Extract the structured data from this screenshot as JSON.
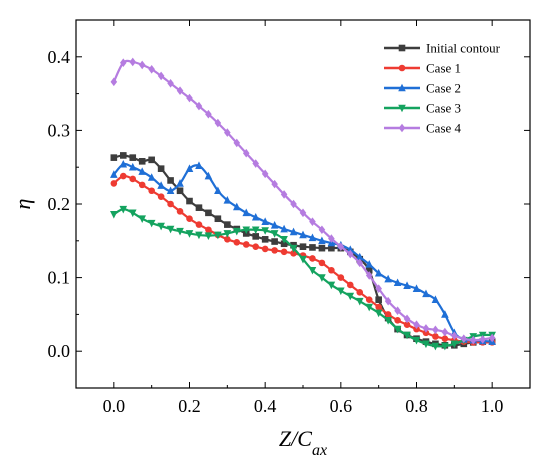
{
  "chart_data": {
    "type": "line",
    "xlabel": "Z/C",
    "xlabel_sub": "ax",
    "ylabel": "η",
    "xlim": [
      -0.1,
      1.1
    ],
    "ylim": [
      -0.05,
      0.45
    ],
    "xticks": [
      0.0,
      0.2,
      0.4,
      0.6,
      0.8,
      1.0
    ],
    "xtick_labels": [
      "0.0",
      "0.2",
      "0.4",
      "0.6",
      "0.8",
      "1.0"
    ],
    "yticks": [
      0.0,
      0.1,
      0.2,
      0.3,
      0.4
    ],
    "ytick_labels": [
      "0.0",
      "0.1",
      "0.2",
      "0.3",
      "0.4"
    ],
    "grid": false,
    "legend_position": "top-right",
    "series": [
      {
        "name": "Initial contour",
        "color": "#3d3d3d",
        "marker": "square",
        "x": [
          0.0,
          0.025,
          0.05,
          0.075,
          0.1,
          0.125,
          0.15,
          0.175,
          0.2,
          0.225,
          0.25,
          0.275,
          0.3,
          0.325,
          0.35,
          0.375,
          0.4,
          0.425,
          0.45,
          0.475,
          0.5,
          0.525,
          0.55,
          0.575,
          0.6,
          0.625,
          0.65,
          0.675,
          0.7,
          0.725,
          0.75,
          0.775,
          0.8,
          0.825,
          0.85,
          0.875,
          0.9,
          0.925,
          0.95,
          0.975,
          1.0
        ],
        "y": [
          0.263,
          0.266,
          0.263,
          0.258,
          0.26,
          0.248,
          0.232,
          0.218,
          0.204,
          0.195,
          0.188,
          0.18,
          0.172,
          0.166,
          0.16,
          0.156,
          0.152,
          0.149,
          0.146,
          0.144,
          0.142,
          0.141,
          0.14,
          0.14,
          0.14,
          0.135,
          0.125,
          0.11,
          0.07,
          0.045,
          0.03,
          0.022,
          0.017,
          0.013,
          0.01,
          0.008,
          0.008,
          0.01,
          0.012,
          0.013,
          0.013
        ]
      },
      {
        "name": "Case 1",
        "color": "#ee3b32",
        "marker": "circle",
        "x": [
          0.0,
          0.025,
          0.05,
          0.075,
          0.1,
          0.125,
          0.15,
          0.175,
          0.2,
          0.225,
          0.25,
          0.275,
          0.3,
          0.325,
          0.35,
          0.375,
          0.4,
          0.425,
          0.45,
          0.475,
          0.5,
          0.525,
          0.55,
          0.575,
          0.6,
          0.625,
          0.65,
          0.675,
          0.7,
          0.725,
          0.75,
          0.775,
          0.8,
          0.825,
          0.85,
          0.875,
          0.9,
          0.925,
          0.95,
          0.975,
          1.0
        ],
        "y": [
          0.228,
          0.238,
          0.234,
          0.226,
          0.218,
          0.21,
          0.2,
          0.19,
          0.18,
          0.172,
          0.165,
          0.158,
          0.152,
          0.148,
          0.145,
          0.142,
          0.139,
          0.137,
          0.135,
          0.133,
          0.13,
          0.126,
          0.12,
          0.11,
          0.1,
          0.09,
          0.08,
          0.07,
          0.06,
          0.05,
          0.042,
          0.036,
          0.03,
          0.025,
          0.02,
          0.017,
          0.015,
          0.013,
          0.012,
          0.012,
          0.012
        ]
      },
      {
        "name": "Case 2",
        "color": "#1f6fd6",
        "marker": "triangle-up",
        "x": [
          0.0,
          0.025,
          0.05,
          0.075,
          0.1,
          0.125,
          0.15,
          0.175,
          0.2,
          0.225,
          0.25,
          0.275,
          0.3,
          0.325,
          0.35,
          0.375,
          0.4,
          0.425,
          0.45,
          0.475,
          0.5,
          0.525,
          0.55,
          0.575,
          0.6,
          0.625,
          0.65,
          0.675,
          0.7,
          0.725,
          0.75,
          0.775,
          0.8,
          0.825,
          0.85,
          0.875,
          0.9,
          0.925,
          0.95,
          0.975,
          1.0
        ],
        "y": [
          0.24,
          0.254,
          0.25,
          0.244,
          0.236,
          0.225,
          0.218,
          0.228,
          0.248,
          0.252,
          0.238,
          0.218,
          0.205,
          0.196,
          0.188,
          0.182,
          0.176,
          0.171,
          0.166,
          0.162,
          0.158,
          0.154,
          0.15,
          0.147,
          0.144,
          0.138,
          0.128,
          0.118,
          0.106,
          0.098,
          0.093,
          0.089,
          0.085,
          0.078,
          0.07,
          0.05,
          0.025,
          0.016,
          0.015,
          0.014,
          0.013
        ]
      },
      {
        "name": "Case 3",
        "color": "#14a35f",
        "marker": "triangle-down",
        "x": [
          0.0,
          0.025,
          0.05,
          0.075,
          0.1,
          0.125,
          0.15,
          0.175,
          0.2,
          0.225,
          0.25,
          0.275,
          0.3,
          0.325,
          0.35,
          0.375,
          0.4,
          0.425,
          0.45,
          0.475,
          0.5,
          0.525,
          0.55,
          0.575,
          0.6,
          0.625,
          0.65,
          0.675,
          0.7,
          0.725,
          0.75,
          0.775,
          0.8,
          0.825,
          0.85,
          0.875,
          0.9,
          0.925,
          0.95,
          0.975,
          1.0
        ],
        "y": [
          0.186,
          0.193,
          0.188,
          0.18,
          0.174,
          0.17,
          0.166,
          0.163,
          0.16,
          0.158,
          0.157,
          0.158,
          0.16,
          0.163,
          0.165,
          0.165,
          0.164,
          0.16,
          0.152,
          0.14,
          0.125,
          0.11,
          0.1,
          0.09,
          0.082,
          0.075,
          0.068,
          0.06,
          0.052,
          0.042,
          0.03,
          0.022,
          0.015,
          0.01,
          0.007,
          0.007,
          0.01,
          0.015,
          0.02,
          0.022,
          0.022
        ]
      },
      {
        "name": "Case 4",
        "color": "#b57ce0",
        "marker": "diamond",
        "x": [
          0.0,
          0.025,
          0.05,
          0.075,
          0.1,
          0.125,
          0.15,
          0.175,
          0.2,
          0.225,
          0.25,
          0.275,
          0.3,
          0.325,
          0.35,
          0.375,
          0.4,
          0.425,
          0.45,
          0.475,
          0.5,
          0.525,
          0.55,
          0.575,
          0.6,
          0.625,
          0.65,
          0.675,
          0.7,
          0.725,
          0.75,
          0.775,
          0.8,
          0.825,
          0.85,
          0.875,
          0.9,
          0.925,
          0.95,
          0.975,
          1.0
        ],
        "y": [
          0.366,
          0.392,
          0.393,
          0.389,
          0.383,
          0.374,
          0.364,
          0.354,
          0.344,
          0.333,
          0.322,
          0.31,
          0.297,
          0.283,
          0.269,
          0.255,
          0.241,
          0.227,
          0.213,
          0.2,
          0.188,
          0.176,
          0.165,
          0.153,
          0.142,
          0.132,
          0.12,
          0.103,
          0.085,
          0.068,
          0.055,
          0.044,
          0.036,
          0.031,
          0.029,
          0.026,
          0.021,
          0.017,
          0.015,
          0.016,
          0.018
        ]
      }
    ]
  }
}
